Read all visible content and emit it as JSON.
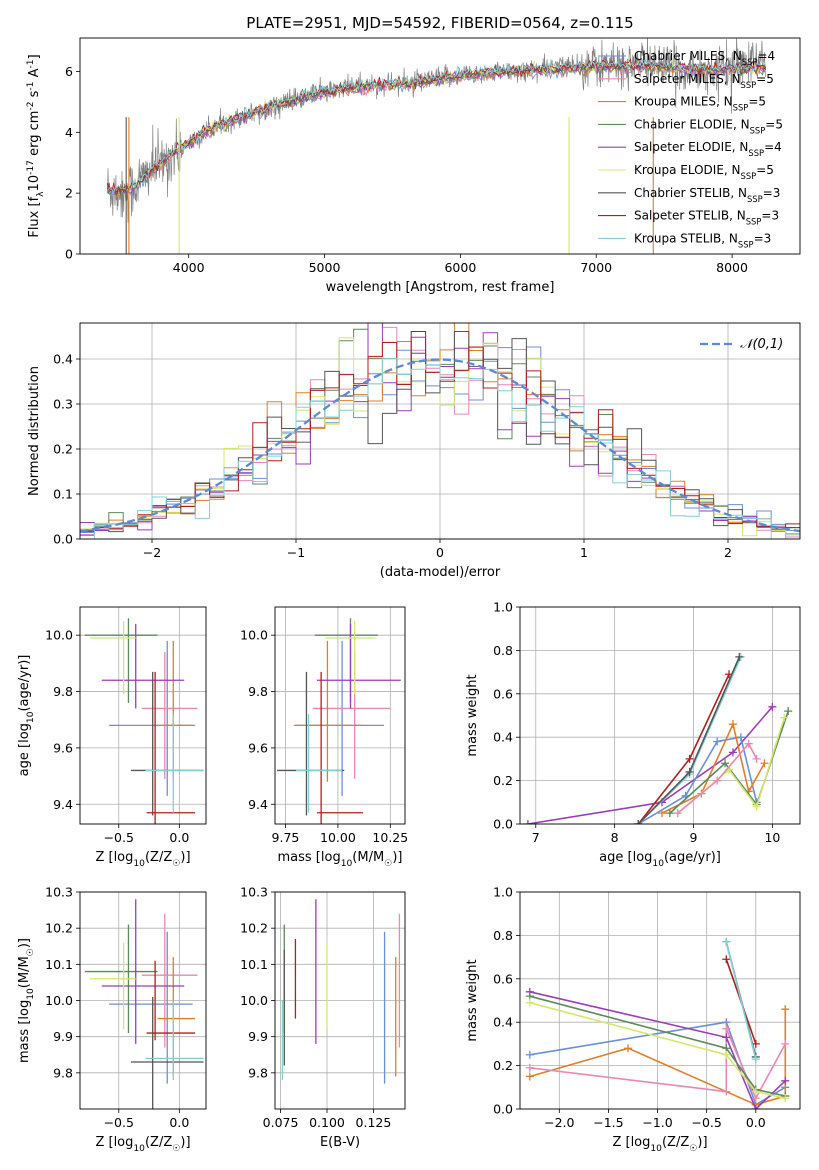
{
  "figure": {
    "title": "PLATE=2951, MJD=54592, FIBERID=0564, z=0.115"
  },
  "legend_entries": [
    {
      "text": "Chabrier MILES, N$_{SSP}$=4",
      "color": "#6a8fdc"
    },
    {
      "text": "Salpeter MILES, N$_{SSP}$=5",
      "color": "#ec86b6"
    },
    {
      "text": "Kroupa MILES, N$_{SSP}$=5",
      "color": "#df7f2a"
    },
    {
      "text": "Chabrier ELODIE, N$_{SSP}$=5",
      "color": "#5c8a5c"
    },
    {
      "text": "Salpeter ELODIE, N$_{SSP}$=4",
      "color": "#9b3db8"
    },
    {
      "text": "Kroupa ELODIE, N$_{SSP}$=5",
      "color": "#d6e86a"
    },
    {
      "text": "Chabrier STELIB, N$_{SSP}$=3",
      "color": "#555555"
    },
    {
      "text": "Salpeter STELIB, N$_{SSP}$=3",
      "color": "#b51d1d"
    },
    {
      "text": "Kroupa STELIB, N$_{SSP}$=3",
      "color": "#7fd1d6"
    }
  ],
  "chart_data": [
    {
      "type": "line",
      "xlabel": "wavelength [Angstrom, rest frame]",
      "ylabel": "Flux [f$_\\lambda$10$^{-17}$ erg cm$^{-2}$ s$^{-1}$ A$^{-1}$]",
      "xlim": [
        3200,
        8500
      ],
      "ylim": [
        0,
        7.1
      ],
      "xticks": [
        4000,
        5000,
        6000,
        7000,
        8000
      ],
      "yticks": [
        0,
        2,
        4,
        6
      ],
      "grid": false,
      "legend": "right",
      "data_spectrum": {
        "name": "data",
        "color": "#808080",
        "x": [
          3400,
          3500,
          3600,
          3700,
          3800,
          3900,
          4000,
          4100,
          4200,
          4300,
          4400,
          4500,
          4600,
          4700,
          4800,
          4900,
          5000,
          5200,
          5400,
          5600,
          5800,
          6000,
          6200,
          6400,
          6600,
          6800,
          7000,
          7200,
          7400,
          7600,
          7800,
          8000,
          8200
        ],
        "y": [
          2.15,
          2.0,
          2.2,
          2.7,
          3.0,
          3.3,
          3.6,
          3.9,
          4.2,
          4.4,
          4.5,
          4.7,
          4.8,
          5.0,
          5.1,
          5.3,
          5.35,
          5.5,
          5.55,
          5.6,
          5.75,
          5.9,
          5.95,
          6.0,
          6.1,
          6.2,
          6.25,
          6.2,
          6.3,
          6.1,
          6.0,
          6.2,
          6.3
        ]
      },
      "model_spectrum": {
        "x": [
          3400,
          3500,
          3600,
          3700,
          3800,
          3900,
          4000,
          4100,
          4200,
          4300,
          4400,
          4500,
          4600,
          4700,
          4800,
          4900,
          5000,
          5200,
          5400,
          5600,
          5800,
          6000,
          6200,
          6400,
          6600,
          6800,
          7000,
          7200,
          7400,
          7600,
          7800,
          8000,
          8200
        ],
        "y": [
          2.1,
          2.05,
          2.2,
          2.65,
          3.0,
          3.35,
          3.65,
          3.95,
          4.2,
          4.35,
          4.5,
          4.65,
          4.8,
          4.95,
          5.05,
          5.2,
          5.3,
          5.45,
          5.55,
          5.6,
          5.7,
          5.85,
          5.95,
          6.0,
          6.05,
          6.1,
          6.15,
          6.15,
          6.15,
          6.1,
          6.05,
          6.05,
          6.1
        ]
      }
    },
    {
      "type": "line",
      "xlabel": "(data-model)/error",
      "ylabel": "Normed distribution",
      "xlim": [
        -2.5,
        2.5
      ],
      "ylim": [
        0,
        0.48
      ],
      "xticks": [
        -2,
        -1,
        0,
        1,
        2
      ],
      "yticks": [
        0.0,
        0.1,
        0.2,
        0.3,
        0.4
      ],
      "grid": true,
      "legend": "top-right",
      "gaussian": {
        "name": "$\\mathcal{N}(0,1)$",
        "mu": 0,
        "sigma": 1,
        "color": "#5b8ad6"
      },
      "histogram_bin_width": 0.1
    },
    {
      "type": "scatter",
      "xlabel": "Z [log$_{10}$(Z/Z$_\\odot$)]",
      "ylabel": "age  [log$_{10}$(age/yr)]",
      "xlim": [
        -0.82,
        0.22
      ],
      "ylim": [
        9.33,
        10.1
      ],
      "xticks": [
        -0.5,
        0.0
      ],
      "yticks": [
        9.4,
        9.6,
        9.8,
        10.0
      ],
      "grid": true,
      "points": [
        {
          "x": -0.1,
          "y": 9.68,
          "xerr": [
            0.48,
            0.21
          ],
          "yerr": [
            0.25,
            0.3
          ],
          "color": "#6a8fdc"
        },
        {
          "x": -0.12,
          "y": 9.74,
          "xerr": [
            0.19,
            0.27
          ],
          "yerr": [
            0.25,
            0.2
          ],
          "color": "#ec86b6"
        },
        {
          "x": -0.05,
          "y": 9.68,
          "xerr": [
            0.13,
            0.18
          ],
          "yerr": [
            0.2,
            0.3
          ],
          "color": "#df7f2a"
        },
        {
          "x": -0.42,
          "y": 10.0,
          "xerr": [
            0.36,
            0.24
          ],
          "yerr": [
            0.24,
            0.06
          ],
          "color": "#5c8a5c"
        },
        {
          "x": -0.36,
          "y": 9.84,
          "xerr": [
            0.28,
            0.4
          ],
          "yerr": [
            0.1,
            0.2
          ],
          "color": "#9b3db8"
        },
        {
          "x": -0.46,
          "y": 9.99,
          "xerr": [
            0.28,
            0.1
          ],
          "yerr": [
            0.2,
            0.06
          ],
          "color": "#d6e86a"
        },
        {
          "x": -0.22,
          "y": 9.52,
          "xerr": [
            0.18,
            0.42
          ],
          "yerr": [
            0.16,
            0.35
          ],
          "color": "#555555"
        },
        {
          "x": -0.2,
          "y": 9.37,
          "xerr": [
            0.07,
            0.33
          ],
          "yerr": [
            0.04,
            0.5
          ],
          "color": "#b51d1d"
        },
        {
          "x": -0.05,
          "y": 9.52,
          "xerr": [
            0.23,
            0.25
          ],
          "yerr": [
            0.15,
            0.2
          ],
          "color": "#7fd1d6"
        }
      ]
    },
    {
      "type": "scatter",
      "xlabel": "mass [log$_{10}$(M/M$_\\odot$)]",
      "ylabel": "",
      "xlim": [
        9.7,
        10.32
      ],
      "ylim": [
        9.33,
        10.1
      ],
      "xticks": [
        9.75,
        10.0,
        10.25
      ],
      "yticks": [
        9.4,
        9.6,
        9.8,
        10.0
      ],
      "grid": true,
      "points": [
        {
          "x": 10.02,
          "y": 9.68,
          "xerr": [
            0.22,
            0.2
          ],
          "yerr": [
            0.25,
            0.3
          ],
          "color": "#6a8fdc"
        },
        {
          "x": 10.08,
          "y": 9.74,
          "xerr": [
            0.2,
            0.17
          ],
          "yerr": [
            0.25,
            0.2
          ],
          "color": "#ec86b6"
        },
        {
          "x": 9.95,
          "y": 9.68,
          "xerr": [
            0.16,
            0.17
          ],
          "yerr": [
            0.2,
            0.3
          ],
          "color": "#df7f2a"
        },
        {
          "x": 10.06,
          "y": 10.0,
          "xerr": [
            0.17,
            0.13
          ],
          "yerr": [
            0.24,
            0.06
          ],
          "color": "#5c8a5c"
        },
        {
          "x": 10.06,
          "y": 9.84,
          "xerr": [
            0.16,
            0.24
          ],
          "yerr": [
            0.1,
            0.2
          ],
          "color": "#9b3db8"
        },
        {
          "x": 10.08,
          "y": 9.99,
          "xerr": [
            0.14,
            0.1
          ],
          "yerr": [
            0.2,
            0.06
          ],
          "color": "#d6e86a"
        },
        {
          "x": 9.85,
          "y": 9.52,
          "xerr": [
            0.14,
            0.18
          ],
          "yerr": [
            0.16,
            0.35
          ],
          "color": "#555555"
        },
        {
          "x": 9.92,
          "y": 9.37,
          "xerr": [
            0.02,
            0.2
          ],
          "yerr": [
            0.04,
            0.5
          ],
          "color": "#b51d1d"
        },
        {
          "x": 9.86,
          "y": 9.52,
          "xerr": [
            0.06,
            0.16
          ],
          "yerr": [
            0.15,
            0.2
          ],
          "color": "#7fd1d6"
        }
      ]
    },
    {
      "type": "line",
      "xlabel": "age  [log$_{10}$(age/yr)]",
      "ylabel": "mass weight",
      "xlim": [
        6.8,
        10.35
      ],
      "ylim": [
        0.0,
        1.0
      ],
      "xticks": [
        7,
        8,
        9,
        10
      ],
      "yticks": [
        0.0,
        0.2,
        0.4,
        0.6,
        0.8,
        1.0
      ],
      "grid": true,
      "series": [
        {
          "color": "#9b3db8",
          "x": [
            6.9,
            8.6,
            9.5,
            10.0
          ],
          "y": [
            0.0,
            0.1,
            0.33,
            0.54
          ]
        },
        {
          "color": "#6a8fdc",
          "x": [
            8.3,
            8.9,
            9.3,
            9.6,
            9.8
          ],
          "y": [
            0.0,
            0.13,
            0.38,
            0.4,
            0.1
          ]
        },
        {
          "color": "#df7f2a",
          "x": [
            8.6,
            9.1,
            9.5,
            9.7,
            9.9
          ],
          "y": [
            0.05,
            0.14,
            0.46,
            0.15,
            0.28
          ]
        },
        {
          "color": "#b51d1d",
          "x": [
            8.3,
            8.95,
            9.45
          ],
          "y": [
            0.0,
            0.3,
            0.69
          ]
        },
        {
          "color": "#7fd1d6",
          "x": [
            8.3,
            8.95,
            9.6
          ],
          "y": [
            0.0,
            0.23,
            0.77
          ]
        },
        {
          "color": "#555555",
          "x": [
            8.3,
            8.95,
            9.58
          ],
          "y": [
            0.0,
            0.24,
            0.77
          ]
        },
        {
          "color": "#5c8a5c",
          "x": [
            8.7,
            9.4,
            9.8,
            10.2
          ],
          "y": [
            0.05,
            0.28,
            0.09,
            0.52
          ]
        },
        {
          "color": "#d6e86a",
          "x": [
            8.8,
            9.45,
            9.8,
            10.15
          ],
          "y": [
            0.05,
            0.25,
            0.08,
            0.49
          ]
        },
        {
          "color": "#ec86b6",
          "x": [
            8.8,
            9.3,
            9.7,
            9.8
          ],
          "y": [
            0.05,
            0.2,
            0.37,
            0.3
          ]
        }
      ]
    },
    {
      "type": "scatter",
      "xlabel": "Z [log$_{10}$(Z/Z$_\\odot$)]",
      "ylabel": "mass [log$_{10}$(M/M$_\\odot$)]",
      "xlim": [
        -0.82,
        0.22
      ],
      "ylim": [
        9.7,
        10.3
      ],
      "xticks": [
        -0.5,
        0.0
      ],
      "yticks": [
        9.8,
        9.9,
        10.0,
        10.1,
        10.2,
        10.3
      ],
      "grid": true,
      "points": [
        {
          "x": -0.1,
          "y": 9.99,
          "xerr": [
            0.48,
            0.21
          ],
          "yerr": [
            0.22,
            0.2
          ],
          "color": "#6a8fdc"
        },
        {
          "x": -0.12,
          "y": 10.07,
          "xerr": [
            0.19,
            0.27
          ],
          "yerr": [
            0.2,
            0.17
          ],
          "color": "#ec86b6"
        },
        {
          "x": -0.05,
          "y": 9.95,
          "xerr": [
            0.13,
            0.18
          ],
          "yerr": [
            0.16,
            0.17
          ],
          "color": "#df7f2a"
        },
        {
          "x": -0.42,
          "y": 10.08,
          "xerr": [
            0.36,
            0.24
          ],
          "yerr": [
            0.17,
            0.13
          ],
          "color": "#5c8a5c"
        },
        {
          "x": -0.36,
          "y": 10.04,
          "xerr": [
            0.28,
            0.4
          ],
          "yerr": [
            0.16,
            0.24
          ],
          "color": "#9b3db8"
        },
        {
          "x": -0.46,
          "y": 10.06,
          "xerr": [
            0.28,
            0.1
          ],
          "yerr": [
            0.14,
            0.1
          ],
          "color": "#d6e86a"
        },
        {
          "x": -0.22,
          "y": 9.83,
          "xerr": [
            0.18,
            0.42
          ],
          "yerr": [
            0.14,
            0.18
          ],
          "color": "#555555"
        },
        {
          "x": -0.2,
          "y": 9.91,
          "xerr": [
            0.07,
            0.33
          ],
          "yerr": [
            0.02,
            0.2
          ],
          "color": "#b51d1d"
        },
        {
          "x": -0.05,
          "y": 9.84,
          "xerr": [
            0.23,
            0.25
          ],
          "yerr": [
            0.06,
            0.16
          ],
          "color": "#7fd1d6"
        }
      ]
    },
    {
      "type": "scatter",
      "xlabel": "E(B-V)",
      "ylabel": "",
      "xlim": [
        0.072,
        0.142
      ],
      "ylim": [
        9.7,
        10.3
      ],
      "xticks": [
        0.075,
        0.1,
        0.125
      ],
      "yticks": [
        9.8,
        9.9,
        10.0,
        10.1,
        10.2,
        10.3
      ],
      "grid": true,
      "points": [
        {
          "x": 0.131,
          "y": 9.99,
          "yerr": [
            0.22,
            0.2
          ],
          "color": "#6a8fdc"
        },
        {
          "x": 0.139,
          "y": 10.07,
          "yerr": [
            0.2,
            0.17
          ],
          "color": "#ec86b6"
        },
        {
          "x": 0.137,
          "y": 9.95,
          "yerr": [
            0.16,
            0.17
          ],
          "color": "#df7f2a"
        },
        {
          "x": 0.077,
          "y": 10.08,
          "yerr": [
            0.17,
            0.13
          ],
          "color": "#5c8a5c"
        },
        {
          "x": 0.094,
          "y": 10.04,
          "yerr": [
            0.16,
            0.24
          ],
          "color": "#9b3db8"
        },
        {
          "x": 0.1,
          "y": 10.06,
          "yerr": [
            0.14,
            0.1
          ],
          "color": "#d6e86a"
        },
        {
          "x": 0.077,
          "y": 9.96,
          "yerr": [
            0.14,
            0.18
          ],
          "color": "#555555"
        },
        {
          "x": 0.083,
          "y": 9.97,
          "yerr": [
            0.02,
            0.2
          ],
          "color": "#b51d1d"
        },
        {
          "x": 0.076,
          "y": 9.84,
          "yerr": [
            0.06,
            0.16
          ],
          "color": "#7fd1d6"
        }
      ]
    },
    {
      "type": "line",
      "xlabel": "Z [log$_{10}$(Z/Z$_\\odot$)]",
      "ylabel": "mass weight",
      "xlim": [
        -2.4,
        0.45
      ],
      "ylim": [
        0.0,
        1.0
      ],
      "xticks": [
        -2.0,
        -1.5,
        -1.0,
        -0.5,
        0.0
      ],
      "yticks": [
        0.0,
        0.2,
        0.4,
        0.6,
        0.8,
        1.0
      ],
      "grid": true,
      "series": [
        {
          "color": "#6a8fdc",
          "x": [
            -2.3,
            -0.3,
            0.0,
            0.3
          ],
          "y": [
            0.25,
            0.4,
            0.02,
            0.1
          ]
        },
        {
          "color": "#df7f2a",
          "x": [
            -2.3,
            -1.3,
            0.0,
            0.3,
            0.3
          ],
          "y": [
            0.15,
            0.28,
            0.02,
            0.06,
            0.46
          ]
        },
        {
          "color": "#ec86b6",
          "x": [
            -2.3,
            -0.3,
            -0.3,
            0.0,
            0.3
          ],
          "y": [
            0.19,
            0.08,
            0.37,
            0.05,
            0.3
          ]
        },
        {
          "color": "#9b3db8",
          "x": [
            -2.3,
            -0.3,
            0.0,
            0.3
          ],
          "y": [
            0.54,
            0.33,
            0.0,
            0.13
          ]
        },
        {
          "color": "#5c8a5c",
          "x": [
            -2.3,
            -0.3,
            0.0,
            0.3
          ],
          "y": [
            0.52,
            0.28,
            0.09,
            0.06
          ]
        },
        {
          "color": "#d6e86a",
          "x": [
            -2.3,
            -0.3,
            0.0,
            0.3
          ],
          "y": [
            0.49,
            0.25,
            0.08,
            0.05
          ]
        },
        {
          "color": "#b51d1d",
          "x": [
            -0.3,
            0.0
          ],
          "y": [
            0.69,
            0.3
          ]
        },
        {
          "color": "#555555",
          "x": [
            -0.3,
            0.0
          ],
          "y": [
            0.77,
            0.24
          ]
        },
        {
          "color": "#7fd1d6",
          "x": [
            -0.3,
            0.0
          ],
          "y": [
            0.77,
            0.23
          ]
        }
      ]
    }
  ]
}
